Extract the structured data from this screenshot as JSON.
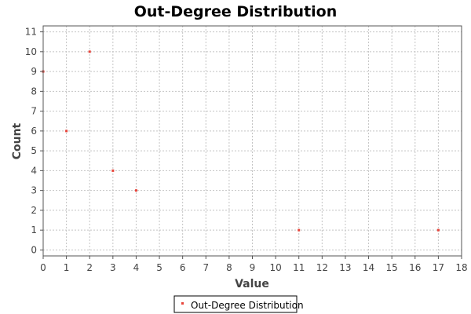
{
  "chart_data": {
    "type": "scatter",
    "title": "Out-Degree Distribution",
    "xlabel": "Value",
    "ylabel": "Count",
    "xlim": [
      0,
      18
    ],
    "ylim": [
      -0.3,
      11.3
    ],
    "xticks": [
      0,
      1,
      2,
      3,
      4,
      5,
      6,
      7,
      8,
      9,
      10,
      11,
      12,
      13,
      14,
      15,
      16,
      17,
      18
    ],
    "yticks": [
      0,
      1,
      2,
      3,
      4,
      5,
      6,
      7,
      8,
      9,
      10,
      11
    ],
    "grid": true,
    "legend_position": "bottom-center",
    "series": [
      {
        "name": "Out-Degree Distribution",
        "color": "#e8443a",
        "marker": "square",
        "points": [
          {
            "x": 0,
            "y": 9
          },
          {
            "x": 1,
            "y": 6
          },
          {
            "x": 2,
            "y": 10
          },
          {
            "x": 3,
            "y": 4
          },
          {
            "x": 4,
            "y": 3
          },
          {
            "x": 11,
            "y": 1
          },
          {
            "x": 17,
            "y": 1
          }
        ]
      }
    ]
  }
}
